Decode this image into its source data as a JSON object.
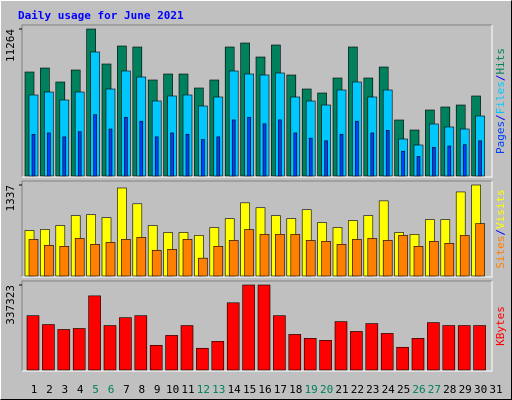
{
  "chart_data": {
    "type": "bar",
    "title": "Daily usage for June 2021",
    "categories": [
      "1",
      "2",
      "3",
      "4",
      "5",
      "6",
      "7",
      "8",
      "9",
      "10",
      "11",
      "12",
      "13",
      "14",
      "15",
      "16",
      "17",
      "18",
      "19",
      "20",
      "21",
      "22",
      "23",
      "24",
      "25",
      "26",
      "27",
      "28",
      "29",
      "30",
      "31"
    ],
    "category_colors": [
      "#000000",
      "#000000",
      "#000000",
      "#000000",
      "#00805c",
      "#00805c",
      "#000000",
      "#000000",
      "#000000",
      "#000000",
      "#000000",
      "#00805c",
      "#00805c",
      "#000000",
      "#000000",
      "#000000",
      "#000000",
      "#000000",
      "#00805c",
      "#00805c",
      "#000000",
      "#000000",
      "#000000",
      "#000000",
      "#000000",
      "#00805c",
      "#00805c",
      "#000000",
      "#000000",
      "#000000",
      "#000000"
    ],
    "legend_separator": "/",
    "panels": [
      {
        "ylim": [
          0,
          11264
        ],
        "yticks": [
          11264
        ],
        "series": [
          {
            "name": "Hits",
            "color": "#00805c",
            "values": [
              7969,
              8275,
              7203,
              8122,
              11264,
              8582,
              9961,
              9885,
              7356,
              7816,
              7816,
              6743,
              7356,
              9885,
              10191,
              9118,
              10038,
              7739,
              6666,
              6360,
              7509,
              9885,
              7509,
              8352,
              4291,
              3525,
              5057,
              5287,
              5440,
              6130,
              null
            ]
          },
          {
            "name": "Files",
            "color": "#00c8ff",
            "values": [
              6207,
              6436,
              5824,
              6436,
              9502,
              6666,
              8046,
              7586,
              5747,
              6130,
              6207,
              5364,
              6053,
              8046,
              7816,
              7739,
              7892,
              6053,
              5747,
              5440,
              6590,
              7203,
              6053,
              6590,
              2835,
              2375,
              3984,
              3755,
              3601,
              4598,
              null
            ]
          },
          {
            "name": "Pages",
            "color": "#0040ff",
            "values": [
              3200,
              3300,
              3000,
              3400,
              4700,
              3600,
              4500,
              4200,
              3000,
              3300,
              3200,
              2800,
              3000,
              4300,
              4500,
              4000,
              4300,
              3300,
              2900,
              2700,
              3200,
              4200,
              3300,
              3500,
              1900,
              1500,
              2200,
              2300,
              2400,
              2700,
              null
            ]
          }
        ]
      },
      {
        "ylim": [
          0,
          1337
        ],
        "yticks": [
          1337
        ],
        "series": [
          {
            "name": "Visits",
            "color": "#ffff00",
            "values": [
              668,
              683,
              741,
              887,
              901,
              857,
              1293,
              1061,
              741,
              639,
              639,
              596,
              712,
              843,
              1075,
              1003,
              887,
              843,
              974,
              785,
              712,
              814,
              887,
              1104,
              639,
              611,
              829,
              829,
              1235,
              1337,
              null
            ]
          },
          {
            "name": "Sites",
            "color": "#ff8000",
            "values": [
              538,
              451,
              436,
              552,
              465,
              494,
              538,
              567,
              378,
              392,
              538,
              262,
              436,
              523,
              683,
              611,
              611,
              611,
              523,
              509,
              465,
              538,
              552,
              523,
              596,
              436,
              509,
              480,
              596,
              770,
              null
            ]
          }
        ]
      },
      {
        "ylim": [
          0,
          337323
        ],
        "yticks": [
          337323
        ],
        "series": [
          {
            "name": "KBytes",
            "color": "#ff0000",
            "values": [
              215730,
              180428,
              160816,
              164738,
              294177,
              176506,
              207885,
              215730,
              98059,
              137282,
              176506,
              86292,
              113747,
              266720,
              337323,
              337323,
              215730,
              141204,
              125515,
              117671,
              192195,
              152971,
              184350,
              145126,
              90213,
              125515,
              188272,
              176506,
              176506,
              176506,
              null
            ]
          }
        ]
      }
    ]
  }
}
